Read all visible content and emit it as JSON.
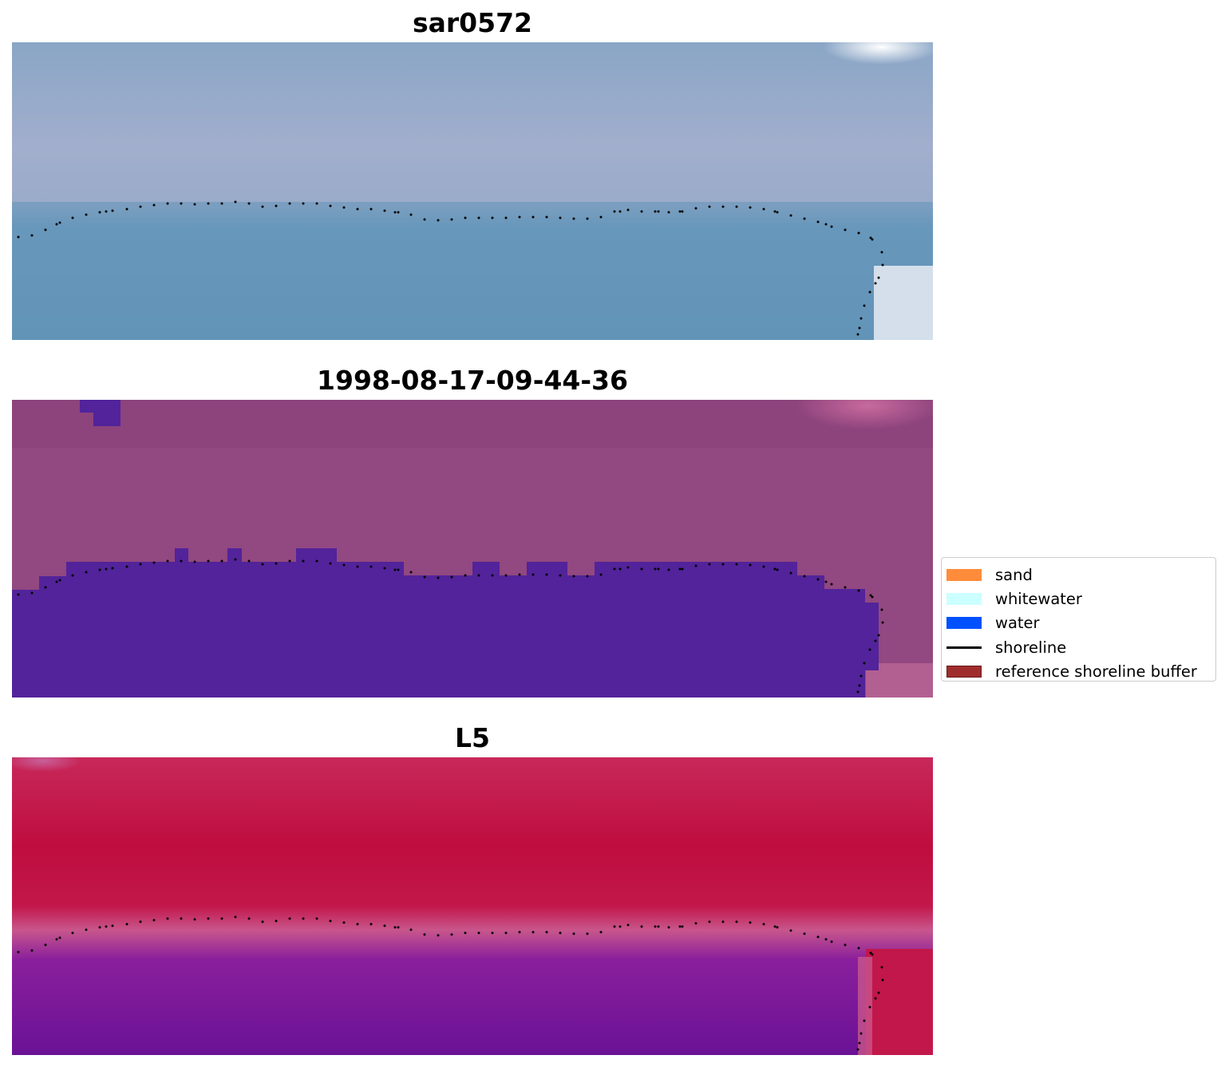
{
  "panels": [
    {
      "title": "sar0572"
    },
    {
      "title": "1998-08-17-09-44-36"
    },
    {
      "title": "L5"
    }
  ],
  "legend": {
    "items": [
      {
        "label": "sand",
        "color": "#ff8c3a",
        "kind": "patch"
      },
      {
        "label": "whitewater",
        "color": "#ccffff",
        "kind": "patch"
      },
      {
        "label": "water",
        "color": "#0050ff",
        "kind": "patch"
      },
      {
        "label": "shoreline",
        "color": "#000000",
        "kind": "line"
      },
      {
        "label": "reference shoreline buffer",
        "color": "#a02d2d",
        "kind": "patch",
        "edge": "#6b1a1a"
      }
    ]
  },
  "colors": {
    "sar_land": "#9faacb",
    "sar_water": "#6294b8",
    "classified_land": "#924880",
    "classified_water": "#52239a",
    "l5_land": "#c2174a",
    "l5_water": "#6a1296",
    "shoreline_dots": "#000000"
  }
}
